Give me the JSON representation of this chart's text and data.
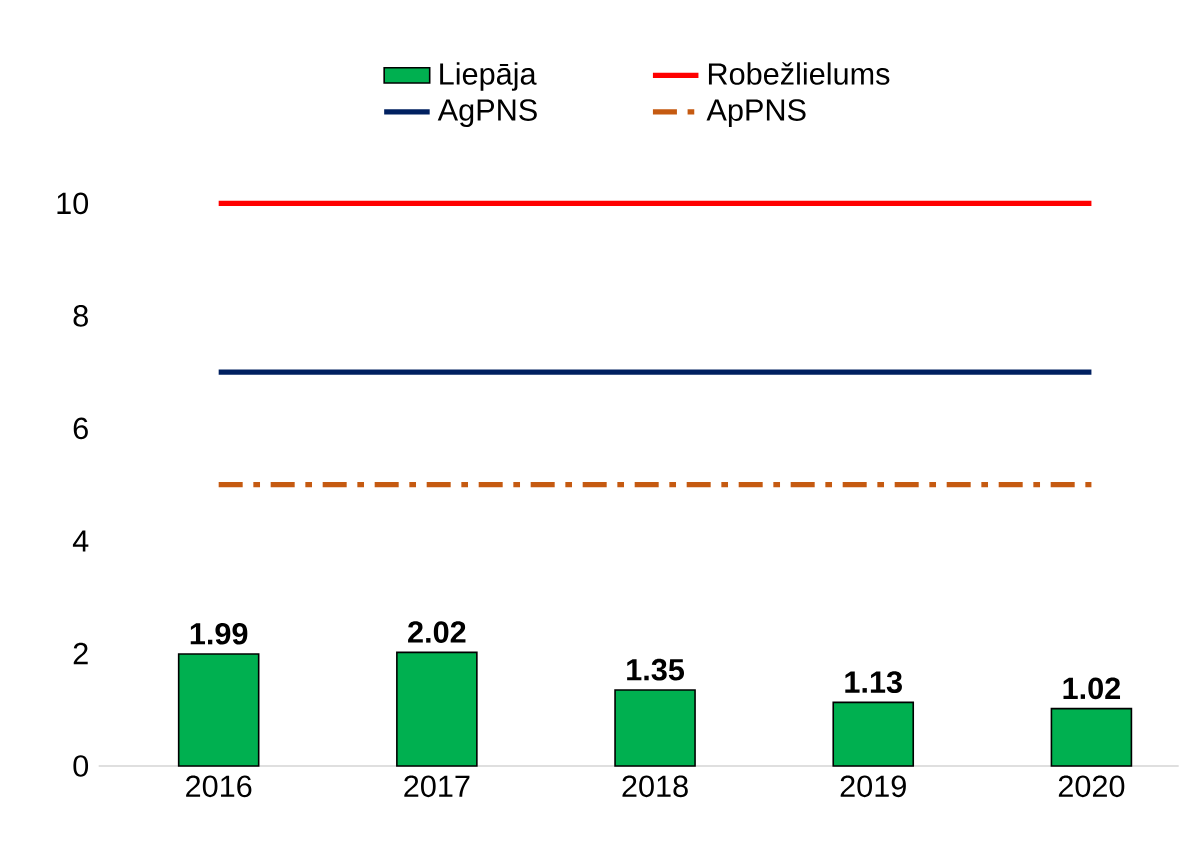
{
  "chart_data": {
    "type": "bar",
    "categories": [
      "2016",
      "2017",
      "2018",
      "2019",
      "2020"
    ],
    "series": [
      {
        "name": "Liepāja",
        "color": "#00b050",
        "values": [
          1.99,
          2.02,
          1.35,
          1.13,
          1.02
        ],
        "value_labels": [
          "1.99",
          "2.02",
          "1.35",
          "1.13",
          "1.02"
        ]
      },
      {
        "name": "Robežlielums",
        "type": "line",
        "color": "#ff0000",
        "values": [
          10,
          10,
          10,
          10,
          10
        ],
        "line_style": "solid"
      },
      {
        "name": "AgPNS",
        "type": "line",
        "color": "#002060",
        "values": [
          7,
          7,
          7,
          7,
          7
        ],
        "line_style": "solid"
      },
      {
        "name": "ApPNS",
        "type": "line",
        "color": "#c55a11",
        "values": [
          5,
          5,
          5,
          5,
          5
        ],
        "line_style": "dashdot"
      }
    ],
    "ylim": [
      0,
      10
    ],
    "yticks": [
      0,
      2,
      4,
      6,
      8,
      10
    ],
    "grid": false,
    "legend": "top",
    "marker": "none"
  }
}
